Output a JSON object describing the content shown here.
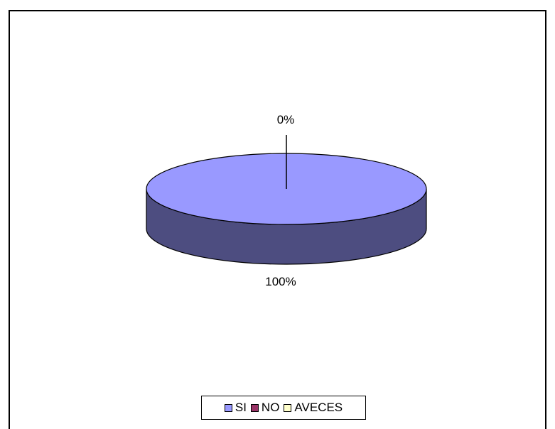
{
  "chart_data": {
    "type": "pie",
    "style": "3d",
    "categories": [
      "SI",
      "NO",
      "AVECES"
    ],
    "values": [
      100,
      0,
      0
    ],
    "data_labels": [
      "100%",
      "0%",
      "0%"
    ],
    "colors": {
      "SI": "#9999ff",
      "NO": "#993366",
      "AVECES": "#ffffcc",
      "si_side": "#4d4d80",
      "outline": "#000000"
    },
    "legend": {
      "placement": "bottom",
      "items": [
        {
          "label": "SI",
          "color": "#9999ff"
        },
        {
          "label": "NO",
          "color": "#993366"
        },
        {
          "label": "AVECES",
          "color": "#ffffcc"
        }
      ]
    }
  }
}
